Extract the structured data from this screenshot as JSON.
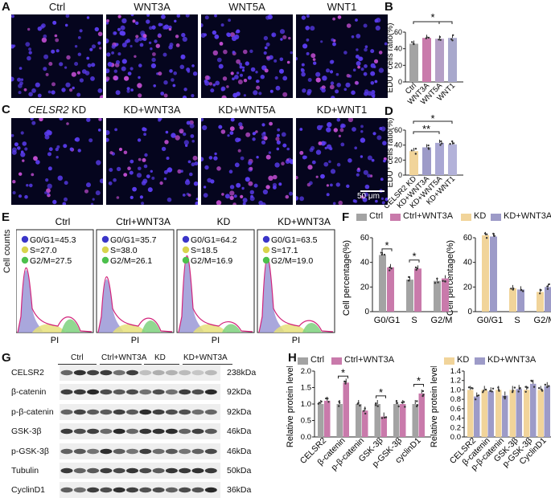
{
  "panel_letters": {
    "A": "A",
    "B": "B",
    "C": "C",
    "D": "D",
    "E": "E",
    "F": "F",
    "G": "G",
    "H": "H"
  },
  "panelA": {
    "titles": [
      "Ctrl",
      "WNT3A",
      "WNT5A",
      "WNT1"
    ]
  },
  "panelC": {
    "title_gene": "CELSR2",
    "title_suffix": " KD",
    "titles": [
      "KD+WNT3A",
      "KD+WNT5A",
      "KD+WNT1"
    ],
    "scale_bar": "50 μm"
  },
  "panelE": {
    "ylabel": "Cell counts",
    "xlabel": "PI",
    "plots": [
      {
        "title": "Ctrl",
        "g0g1": "G0/G1=45.3",
        "s": "S=27.0",
        "g2m": "G2/M=27.5"
      },
      {
        "title": "Ctrl+WNT3A",
        "g0g1": "G0/G1=35.7",
        "s": "S=38.0",
        "g2m": "G2/M=26.1"
      },
      {
        "title": "KD",
        "g0g1": "G0/G1=64.2",
        "s": "S=18.5",
        "g2m": "G2/M=16.9"
      },
      {
        "title": "KD+WNT3A",
        "g0g1": "G0/G1=63.5",
        "s": "S=17.1",
        "g2m": "G2/M=19.0"
      }
    ]
  },
  "panelG": {
    "groups": [
      "Ctrl",
      "Ctrl+WNT3A",
      "KD",
      "KD+WNT3A"
    ],
    "proteins": [
      "CELSR2",
      "β-catenin",
      "p-β-catenin",
      "GSK-3β",
      "p-GSK-3β",
      "Tubulin",
      "CyclinD1"
    ],
    "sizes": [
      "238kDa",
      "92kDa",
      "92kDa",
      "46kDa",
      "46kDa",
      "50kDa",
      "36kDa"
    ]
  },
  "colors": {
    "ctrl": "#a3a3a3",
    "wnt3a": "#c97aab",
    "wnt5a": "#b59fc6",
    "wnt1": "#a8a8cc",
    "kd": "#f1d49a",
    "kdwnt3a": "#9d9bc8",
    "kdwnt5a": "#a9a7d3",
    "kdwnt1": "#b3b2d9"
  },
  "chart_data": [
    {
      "panel": "B",
      "type": "bar",
      "ylabel": "EDU⁺ cells ratio(%)",
      "categories": [
        "Ctrl",
        "WNT3A",
        "WNT5A",
        "WNT1"
      ],
      "values": [
        46,
        53,
        52,
        53
      ],
      "ylim": [
        0,
        60
      ],
      "ticks": [
        0,
        20,
        40,
        60
      ],
      "significance": [
        "*"
      ]
    },
    {
      "panel": "D",
      "type": "bar",
      "ylabel": "EDU⁺ cells ratio(%)",
      "categories": [
        "CELSR2 KD",
        "KD+WNT3A",
        "KD+WNT5A",
        "KD+WNT1"
      ],
      "values": [
        32,
        37,
        43,
        41
      ],
      "ylim": [
        0,
        60
      ],
      "ticks": [
        0,
        20,
        40,
        60
      ],
      "significance": [
        "**",
        "*"
      ]
    },
    {
      "panel": "F",
      "type": "bar",
      "ylabel": "Cell percentage(%)",
      "legend": [
        "Ctrl",
        "Ctrl+WNT3A",
        "KD",
        "KD+WNT3A"
      ],
      "left": {
        "categories": [
          "G0/G1",
          "S",
          "G2/M"
        ],
        "series": [
          {
            "name": "Ctrl",
            "values": [
              46,
              26,
              25
            ]
          },
          {
            "name": "Ctrl+WNT3A",
            "values": [
              36,
              35,
              27
            ]
          }
        ],
        "ylim": [
          0,
          60
        ],
        "ticks": [
          0,
          20,
          40,
          60
        ],
        "significance": [
          "*",
          "*"
        ]
      },
      "right": {
        "categories": [
          "G0/G1",
          "S",
          "G2/M"
        ],
        "series": [
          {
            "name": "KD",
            "values": [
              62,
              19,
              16
            ]
          },
          {
            "name": "KD+WNT3A",
            "values": [
              61,
              18,
              20
            ]
          }
        ],
        "ylim": [
          0,
          60
        ],
        "ticks": [
          0,
          20,
          40,
          60
        ]
      }
    },
    {
      "panel": "H",
      "type": "bar",
      "ylabel": "Relative protein level",
      "legend": [
        "Ctrl",
        "Ctrl+WNT3A",
        "KD",
        "KD+WNT3A"
      ],
      "left": {
        "categories": [
          "CELSR2",
          "β-catenin",
          "p-β-catenin",
          "GSK-3β",
          "p-GSK-3β",
          "cyclinD1"
        ],
        "series": [
          {
            "name": "Ctrl",
            "values": [
              1.0,
              1.0,
              1.0,
              1.0,
              1.0,
              1.0
            ]
          },
          {
            "name": "Ctrl+WNT3A",
            "values": [
              1.1,
              1.65,
              0.8,
              0.62,
              1.0,
              1.32
            ]
          }
        ],
        "ylim": [
          0,
          2.0
        ],
        "ticks": [
          0.0,
          0.5,
          1.0,
          1.5,
          2.0
        ],
        "significance": [
          "*",
          "*",
          "*"
        ]
      },
      "right": {
        "categories": [
          "CELSR2",
          "β-catenin",
          "p-β-catenin",
          "GSK-3β",
          "p-GSK-3β",
          "CyclinD1"
        ],
        "series": [
          {
            "name": "KD",
            "values": [
              1.0,
              1.0,
              1.0,
              1.0,
              1.0,
              1.0
            ]
          },
          {
            "name": "KD+WNT3A",
            "values": [
              0.86,
              0.97,
              0.88,
              1.02,
              1.13,
              1.08
            ]
          }
        ],
        "ylim": [
          0,
          1.4
        ],
        "ticks": [
          0.0,
          0.2,
          0.4,
          0.6,
          0.8,
          1.0,
          1.2,
          1.4
        ]
      }
    }
  ]
}
